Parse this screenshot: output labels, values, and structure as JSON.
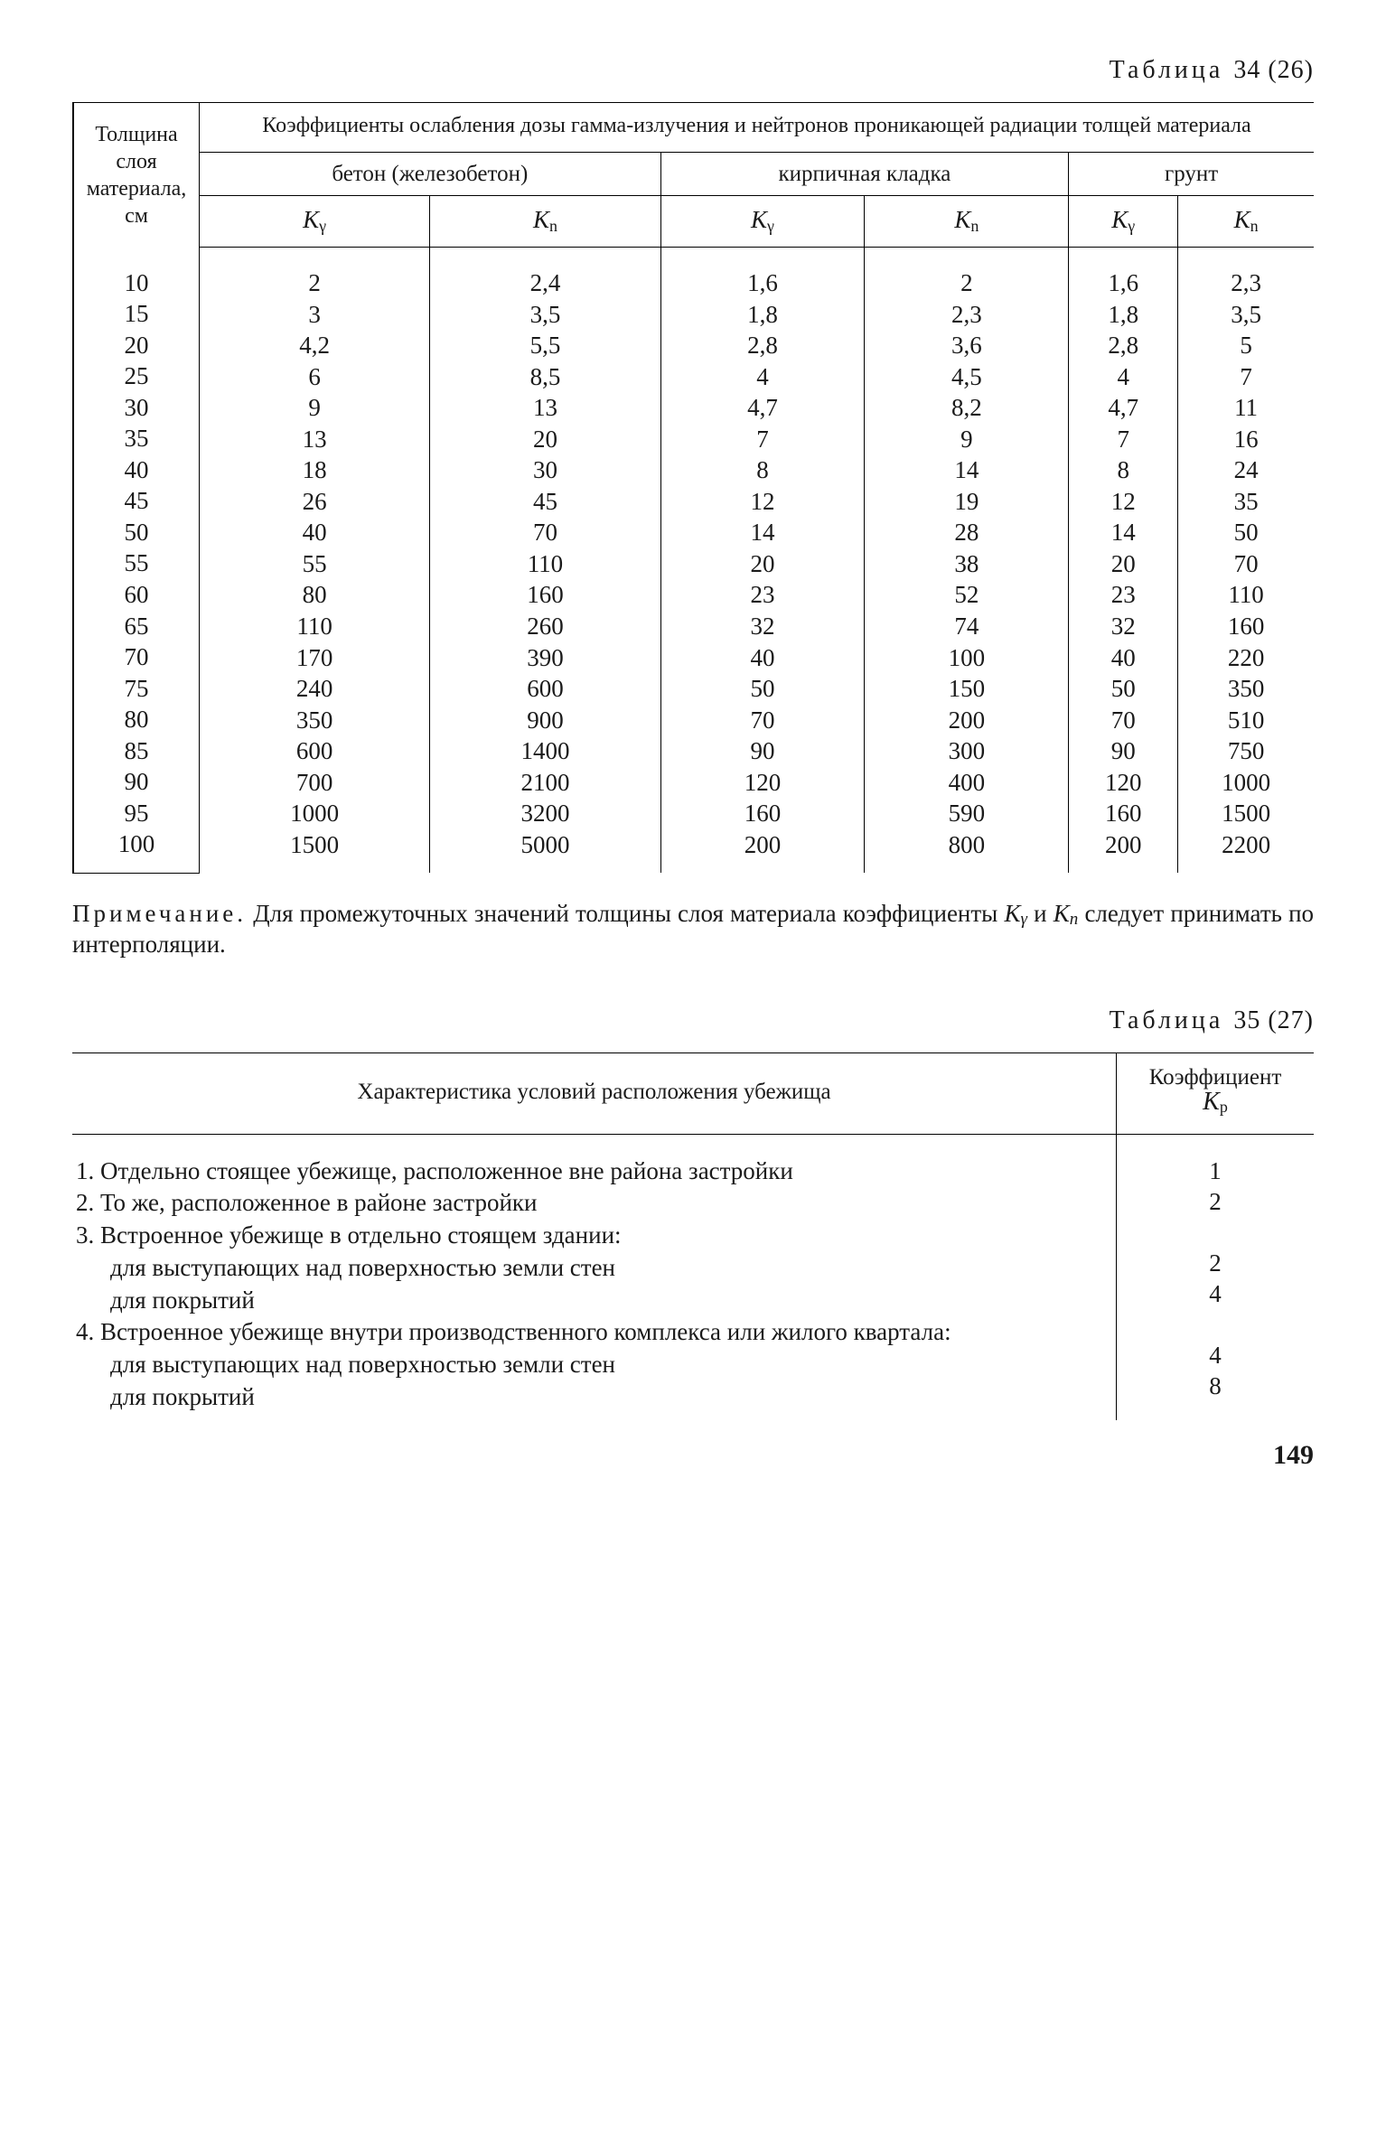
{
  "table34": {
    "label_word": "Таблица",
    "label_num": "34 (26)",
    "spanner": "Коэффициенты ослабления дозы гамма-излучения и нейтронов проникающей радиации толщей материала",
    "rowhead": "Толщина слоя материала, см",
    "materials": [
      "бетон (железобетон)",
      "кирпичная кладка",
      "грунт"
    ],
    "coef_g": "K",
    "coef_g_sub": "γ",
    "coef_n": "K",
    "coef_n_sub": "n",
    "thickness": [
      "10",
      "15",
      "20",
      "25",
      "30",
      "35",
      "40",
      "45",
      "50",
      "55",
      "60",
      "65",
      "70",
      "75",
      "80",
      "85",
      "90",
      "95",
      "100"
    ],
    "cols": {
      "b_g": [
        "2",
        "3",
        "4,2",
        "6",
        "9",
        "13",
        "18",
        "26",
        "40",
        "55",
        "80",
        "110",
        "170",
        "240",
        "350",
        "600",
        "700",
        "1000",
        "1500"
      ],
      "b_n": [
        "2,4",
        "3,5",
        "5,5",
        "8,5",
        "13",
        "20",
        "30",
        "45",
        "70",
        "110",
        "160",
        "260",
        "390",
        "600",
        "900",
        "1400",
        "2100",
        "3200",
        "5000"
      ],
      "k_g": [
        "1,6",
        "1,8",
        "2,8",
        "4",
        "4,7",
        "7",
        "8",
        "12",
        "14",
        "20",
        "23",
        "32",
        "40",
        "50",
        "70",
        "90",
        "120",
        "160",
        "200"
      ],
      "k_n": [
        "2",
        "2,3",
        "3,6",
        "4,5",
        "8,2",
        "9",
        "14",
        "19",
        "28",
        "38",
        "52",
        "74",
        "100",
        "150",
        "200",
        "300",
        "400",
        "590",
        "800"
      ],
      "g_g": [
        "1,6",
        "1,8",
        "2,8",
        "4",
        "4,7",
        "7",
        "8",
        "12",
        "14",
        "20",
        "23",
        "32",
        "40",
        "50",
        "70",
        "90",
        "120",
        "160",
        "200"
      ],
      "g_n": [
        "2,3",
        "3,5",
        "5",
        "7",
        "11",
        "16",
        "24",
        "35",
        "50",
        "70",
        "110",
        "160",
        "220",
        "350",
        "510",
        "750",
        "1000",
        "1500",
        "2200"
      ]
    }
  },
  "note": {
    "label": "Примечание.",
    "t1": "Для промежуточных значений толщины слоя материала коэффициенты",
    "kg": "K",
    "kg_sub": "γ",
    "and": "и",
    "kn": "K",
    "kn_sub": "n",
    "t2": "следует принимать по интерполяции."
  },
  "table35": {
    "label_word": "Таблица",
    "label_num": "35 (27)",
    "col_desc": "Характеристика условий расположения убежища",
    "col_val_top": "Коэффициент",
    "col_val_sym": "K",
    "col_val_sub": "р",
    "rows": [
      {
        "text": "1. Отдельно стоящее убежище, расположенное вне района застройки",
        "val": "1",
        "indent": false
      },
      {
        "text": "2. То же, расположенное в районе застройки",
        "val": "2",
        "indent": false
      },
      {
        "text": "3. Встроенное убежище в отдельно стоящем здании:",
        "val": "",
        "indent": false
      },
      {
        "text": "для выступающих над поверхностью земли стен",
        "val": "2",
        "indent": true
      },
      {
        "text": "для покрытий",
        "val": "4",
        "indent": true
      },
      {
        "text": "4. Встроенное убежище внутри производственного комплекса или жилого квартала:",
        "val": "",
        "indent": false
      },
      {
        "text": "для выступающих над поверхностью земли стен",
        "val": "4",
        "indent": true
      },
      {
        "text": "для покрытий",
        "val": "8",
        "indent": true
      }
    ]
  },
  "page": "149"
}
